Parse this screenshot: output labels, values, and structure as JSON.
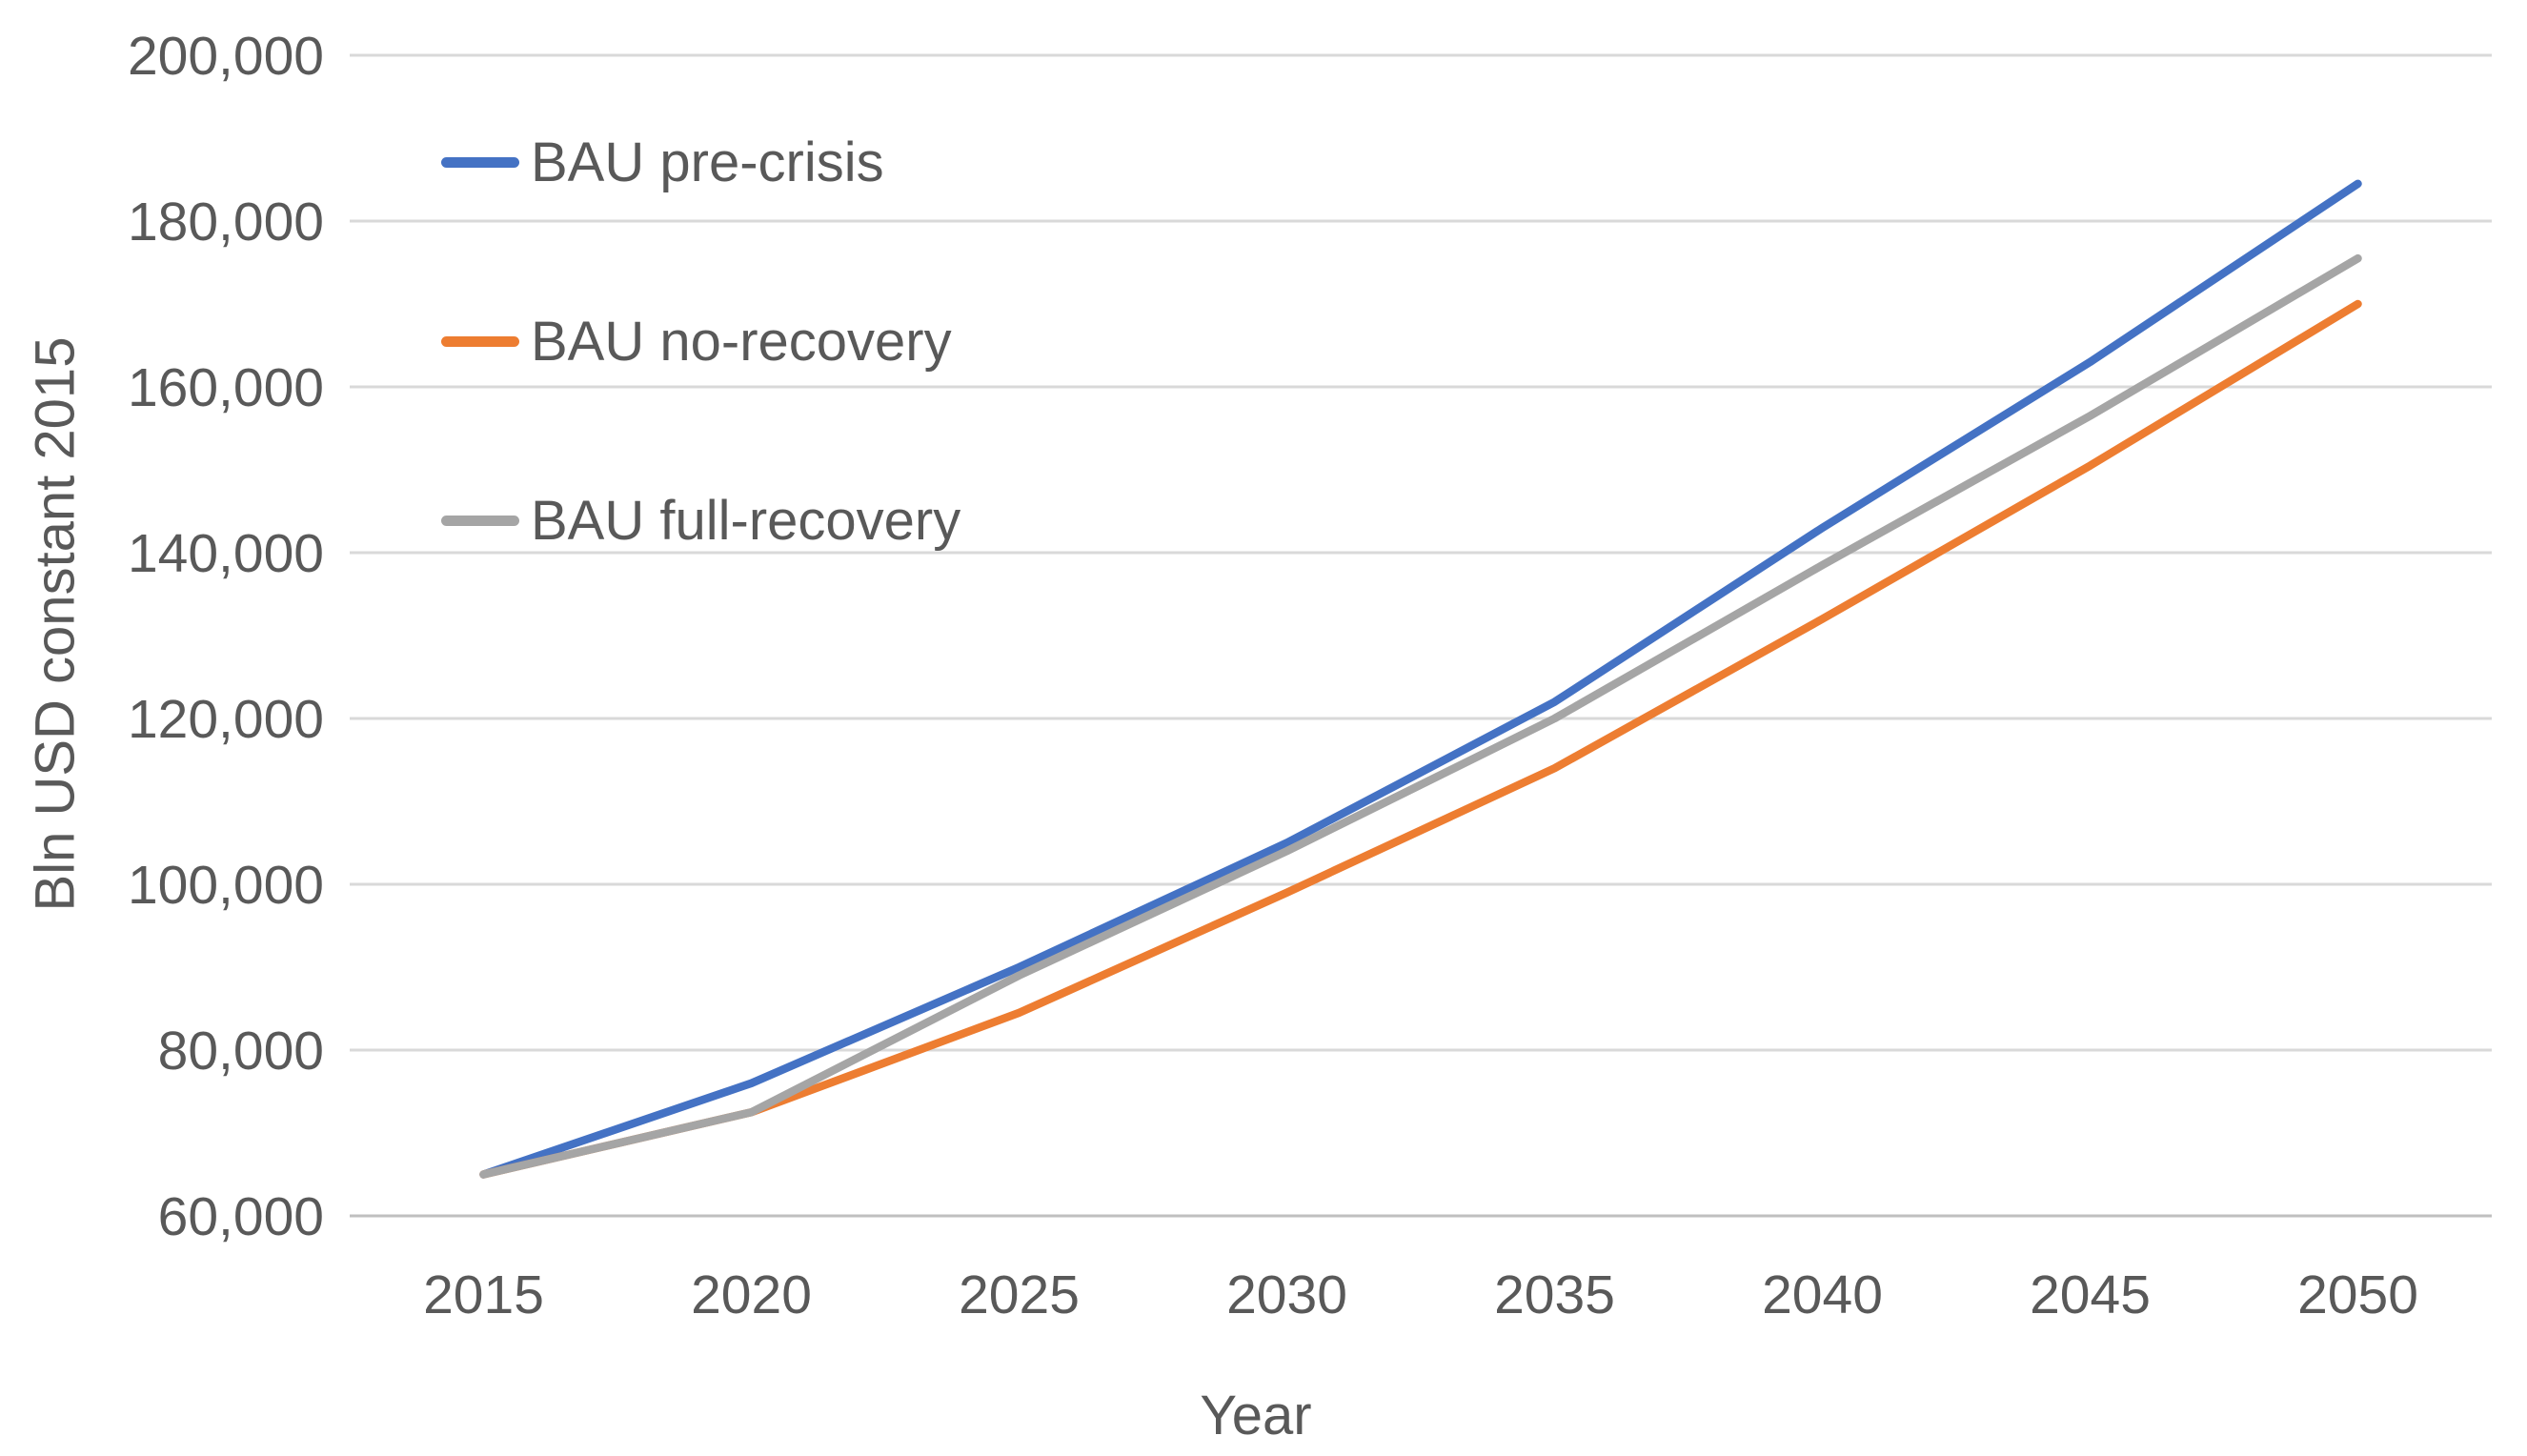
{
  "chart_data": {
    "type": "line",
    "title": "",
    "xlabel": "Year",
    "ylabel": "Bln USD constant 2015",
    "x": [
      2015,
      2020,
      2025,
      2030,
      2035,
      2040,
      2045,
      2050
    ],
    "x_tick_labels": [
      "2015",
      "2020",
      "2025",
      "2030",
      "2035",
      "2040",
      "2045",
      "2050"
    ],
    "ylim": [
      60000,
      200000
    ],
    "y_ticks": [
      60000,
      80000,
      100000,
      120000,
      140000,
      160000,
      180000,
      200000
    ],
    "y_tick_labels": [
      "60,000",
      "80,000",
      "100,000",
      "120,000",
      "140,000",
      "160,000",
      "180,000",
      "200,000"
    ],
    "grid": "horizontal",
    "legend_position": "inside-top-left",
    "series": [
      {
        "name": "BAU pre-crisis",
        "color": "#4472C4",
        "values": [
          65000,
          76000,
          90000,
          105000,
          122000,
          143000,
          163000,
          184500
        ]
      },
      {
        "name": "BAU no-recovery",
        "color": "#ED7D31",
        "values": [
          65000,
          72500,
          84500,
          99000,
          114000,
          132000,
          150500,
          170000
        ]
      },
      {
        "name": "BAU full-recovery",
        "color": "#A5A5A5",
        "values": [
          65000,
          72500,
          89000,
          104000,
          120000,
          138500,
          156500,
          175500
        ]
      }
    ]
  },
  "style_colors": {
    "text": "#595959",
    "grid": "#D9D9D9",
    "baseline": "#BFBFBF",
    "background": "#FFFFFF"
  }
}
